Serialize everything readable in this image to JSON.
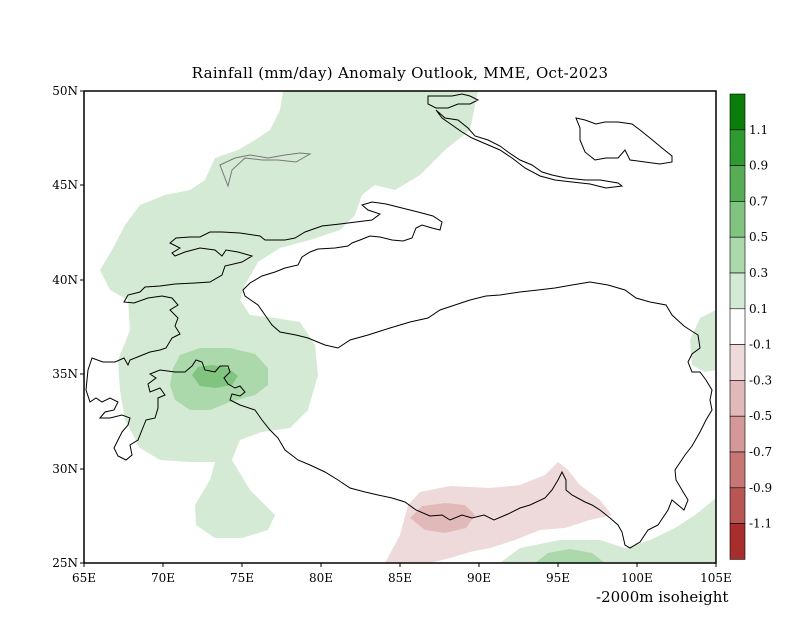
{
  "title": "Rainfall (mm/day) Anomaly Outlook, MME, Oct-2023",
  "note": "-2000m isoheight",
  "axes": {
    "x_ticks": [
      "65E",
      "70E",
      "75E",
      "80E",
      "85E",
      "90E",
      "95E",
      "100E",
      "105E"
    ],
    "y_ticks": [
      "50N",
      "45N",
      "40N",
      "35N",
      "30N",
      "25N"
    ]
  },
  "colorbar": {
    "bins": [
      {
        "range": [
          1.1,
          1.3
        ],
        "color": "#0a7d0a"
      },
      {
        "range": [
          0.9,
          1.1
        ],
        "color": "#2f9a2f"
      },
      {
        "range": [
          0.7,
          0.9
        ],
        "color": "#56ad56"
      },
      {
        "range": [
          0.5,
          0.7
        ],
        "color": "#80c480"
      },
      {
        "range": [
          0.3,
          0.5
        ],
        "color": "#acd9ac"
      },
      {
        "range": [
          0.1,
          0.3
        ],
        "color": "#d4ead4"
      },
      {
        "range": [
          -0.1,
          0.1
        ],
        "color": "#ffffff"
      },
      {
        "range": [
          -0.3,
          -0.1
        ],
        "color": "#eedada"
      },
      {
        "range": [
          -0.5,
          -0.3
        ],
        "color": "#e2b9b9"
      },
      {
        "range": [
          -0.7,
          -0.5
        ],
        "color": "#d49898"
      },
      {
        "range": [
          -0.9,
          -0.7
        ],
        "color": "#c77676"
      },
      {
        "range": [
          -1.1,
          -0.9
        ],
        "color": "#b85656"
      },
      {
        "range": [
          -1.3,
          -1.1
        ],
        "color": "#a82d2d"
      }
    ],
    "labels": [
      "1.1",
      "0.9",
      "0.7",
      "0.5",
      "0.3",
      "0.1",
      "-0.1",
      "-0.3",
      "-0.5",
      "-0.7",
      "-0.9",
      "-1.1"
    ]
  }
}
